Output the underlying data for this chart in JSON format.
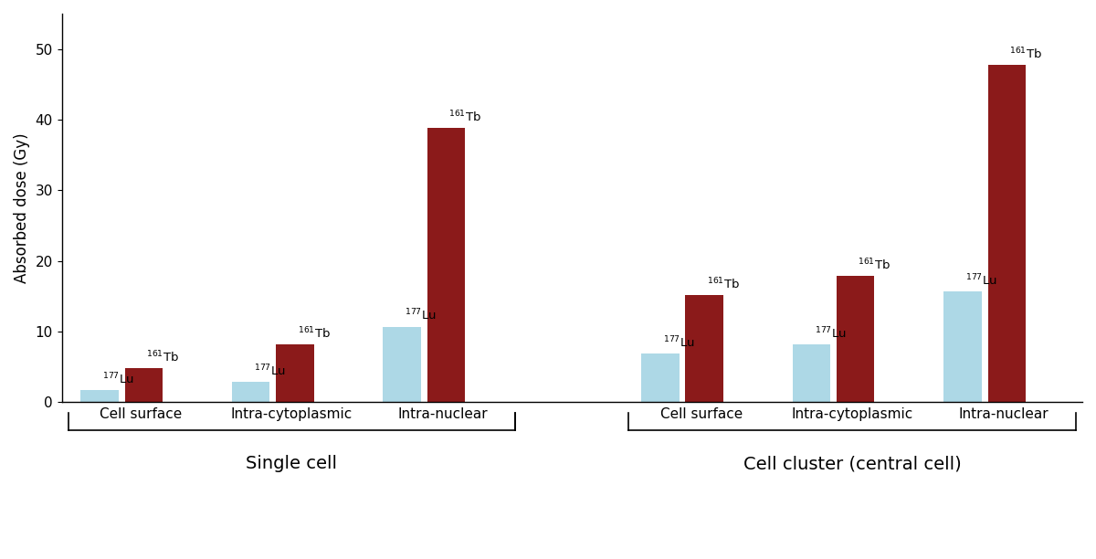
{
  "groups": [
    {
      "label": "Cell surface",
      "section": "Single cell",
      "lu_value": 1.7,
      "tb_value": 4.8
    },
    {
      "label": "Intra-cytoplasmic",
      "section": "Single cell",
      "lu_value": 2.9,
      "tb_value": 8.2
    },
    {
      "label": "Intra-nuclear",
      "section": "Single cell",
      "lu_value": 10.7,
      "tb_value": 38.8
    },
    {
      "label": "Cell surface",
      "section": "Cell cluster (central cell)",
      "lu_value": 6.9,
      "tb_value": 15.2
    },
    {
      "label": "Intra-cytoplasmic",
      "section": "Cell cluster (central cell)",
      "lu_value": 8.2,
      "tb_value": 17.9
    },
    {
      "label": "Intra-nuclear",
      "section": "Cell cluster (central cell)",
      "lu_value": 15.7,
      "tb_value": 47.8
    }
  ],
  "lu_color": "#add8e6",
  "tb_color": "#8b1a1a",
  "ylabel": "Absorbed dose (Gy)",
  "ylim": [
    0,
    55
  ],
  "yticks": [
    0,
    10,
    20,
    30,
    40,
    50
  ],
  "section_labels": [
    "Single cell",
    "Cell cluster (central cell)"
  ],
  "lu_label": "$^{177}$Lu",
  "tb_label": "$^{161}$Tb",
  "background_color": "#ffffff",
  "label_fontsize": 12,
  "tick_fontsize": 11,
  "section_fontsize": 14,
  "annotation_fontsize": 9.5
}
